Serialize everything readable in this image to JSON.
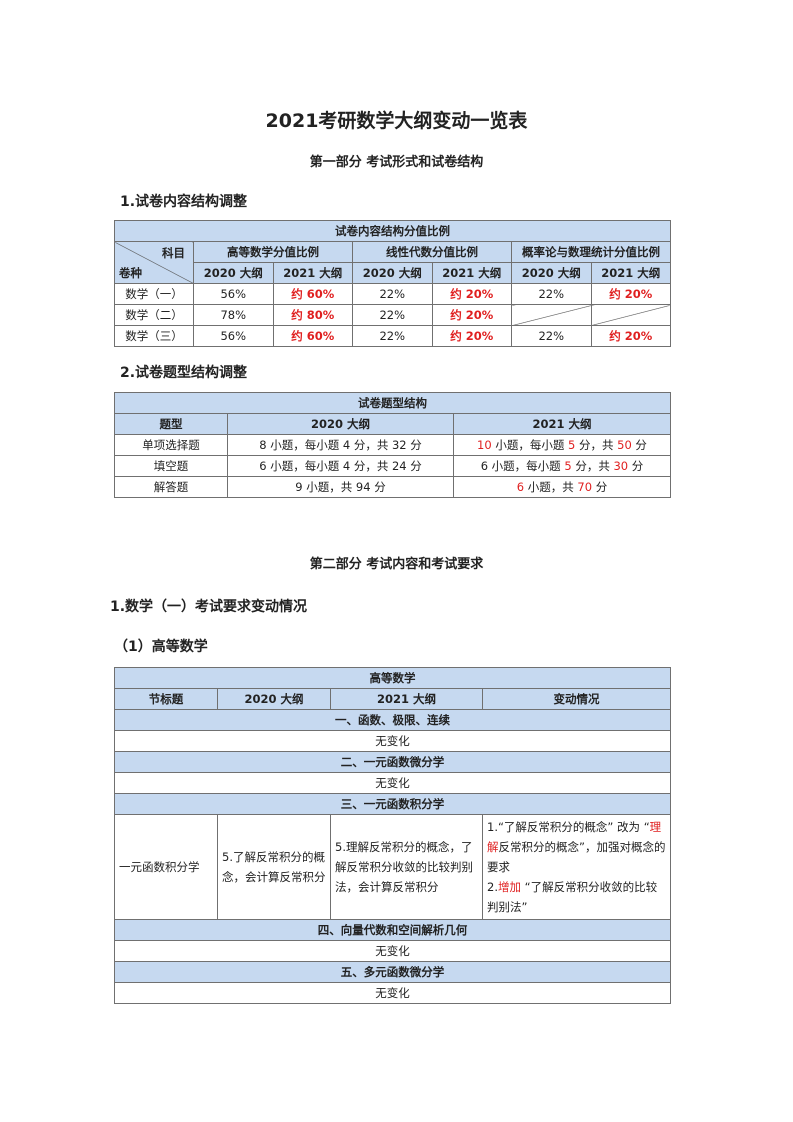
{
  "title": "2021考研数学大纲变动一览表",
  "part1": {
    "title": "第一部分  考试形式和试卷结构",
    "sec1": "1.试卷内容结构调整",
    "t1": {
      "caption": "试卷内容结构分值比例",
      "corner_top": "科目",
      "corner_bottom": "卷种",
      "groups": [
        "高等数学分值比例",
        "线性代数分值比例",
        "概率论与数理统计分值比例"
      ],
      "years": [
        "2020 大纲",
        "2021 大纲"
      ],
      "rows": [
        {
          "label": "数学（一）",
          "v": [
            "56%",
            "约 60%",
            "22%",
            "约 20%",
            "22%",
            "约 20%"
          ]
        },
        {
          "label": "数学（二）",
          "v": [
            "78%",
            "约 80%",
            "22%",
            "约 20%"
          ]
        },
        {
          "label": "数学（三）",
          "v": [
            "56%",
            "约 60%",
            "22%",
            "约 20%",
            "22%",
            "约 20%"
          ]
        }
      ]
    },
    "sec2": "2.试卷题型结构调整",
    "t2": {
      "caption": "试卷题型结构",
      "headers": [
        "题型",
        "2020 大纲",
        "2021 大纲"
      ],
      "rows": [
        {
          "type": "单项选择题",
          "y2020": "8 小题，每小题 4 分，共 32 分",
          "y2021": [
            "10",
            " 小题，每小题 ",
            "5",
            " 分，共 ",
            "50",
            " 分"
          ]
        },
        {
          "type": "填空题",
          "y2020": "6 小题，每小题 4 分，共 24 分",
          "y2021": [
            "6 小题，每小题 ",
            "5",
            " 分，共 ",
            "30",
            " 分"
          ]
        },
        {
          "type": "解答题",
          "y2020": "9 小题，共 94 分",
          "y2021": [
            "6",
            " 小题，共 ",
            "70",
            " 分"
          ]
        }
      ]
    }
  },
  "part2": {
    "title": "第二部分  考试内容和考试要求",
    "sec1": "1.数学（一）考试要求变动情况",
    "sub1": "（1）高等数学",
    "t3": {
      "caption": "高等数学",
      "headers": [
        "节标题",
        "2020 大纲",
        "2021 大纲",
        "变动情况"
      ],
      "sections": [
        "一、函数、极限、连续",
        "二、一元函数微分学",
        "三、一元函数积分学",
        "四、向量代数和空间解析几何",
        "五、多元函数微分学"
      ],
      "no_change": "无变化",
      "row": {
        "name": "一元函数积分学",
        "y2020": "5.了解反常积分的概念，会计算反常积分",
        "y2021": "5.理解反常积分的概念，了解反常积分收敛的比较判别法，会计算反常积分",
        "change": [
          "1.“了解反常积分的概念” 改为 “",
          "理解",
          "反常积分的概念”，加强对概念的要求",
          "2.",
          "增加",
          " “了解反常积分收敛的比较判别法”"
        ]
      }
    }
  },
  "colors": {
    "header_bg": "#c6d9f0",
    "highlight": "#e02020"
  }
}
